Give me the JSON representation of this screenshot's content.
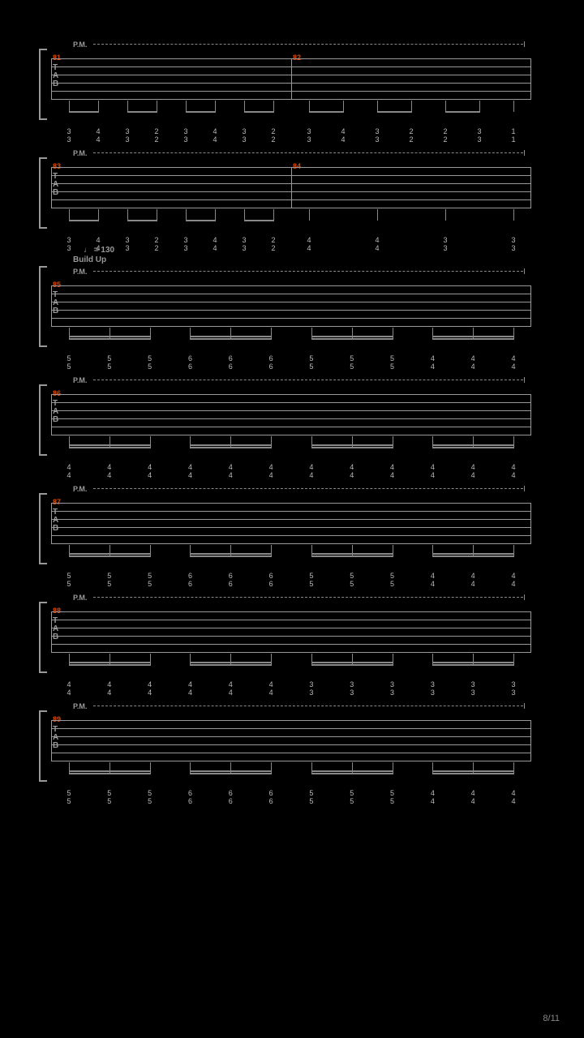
{
  "page_number": "8/11",
  "background_color": "#000000",
  "line_color": "#999999",
  "measure_num_color": "#e04800",
  "note_color": "#bbbbbb",
  "systems": [
    {
      "pm_label": "P.M.",
      "measures": [
        {
          "number": "81",
          "notes": [
            {
              "string5": "3",
              "string6": "3"
            },
            {
              "string5": "4",
              "string6": "4"
            },
            {
              "string5": "3",
              "string6": "3"
            },
            {
              "string5": "2",
              "string6": "2"
            },
            {
              "string5": "3",
              "string6": "3"
            },
            {
              "string5": "4",
              "string6": "4"
            },
            {
              "string5": "3",
              "string6": "3"
            },
            {
              "string5": "2",
              "string6": "2"
            }
          ],
          "beam_groups": [
            [
              0,
              1
            ],
            [
              2,
              3
            ],
            [
              4,
              5
            ],
            [
              6,
              7
            ]
          ]
        },
        {
          "number": "82",
          "notes": [
            {
              "string5": "3",
              "string6": "3"
            },
            {
              "string5": "4",
              "string6": "4"
            },
            {
              "string5": "3",
              "string6": "3"
            },
            {
              "string5": "2",
              "string6": "2"
            },
            {
              "string5": "2",
              "string6": "2"
            },
            {
              "string5": "3",
              "string6": "3"
            },
            {
              "string5": "1",
              "string6": "1"
            }
          ],
          "beam_groups": [
            [
              0,
              1
            ],
            [
              2,
              3
            ],
            [
              4,
              5
            ]
          ]
        }
      ]
    },
    {
      "pm_label": "P.M.",
      "measures": [
        {
          "number": "83",
          "notes": [
            {
              "string5": "3",
              "string6": "3"
            },
            {
              "string5": "4",
              "string6": "4"
            },
            {
              "string5": "3",
              "string6": "3"
            },
            {
              "string5": "2",
              "string6": "2"
            },
            {
              "string5": "3",
              "string6": "3"
            },
            {
              "string5": "4",
              "string6": "4"
            },
            {
              "string5": "3",
              "string6": "3"
            },
            {
              "string5": "2",
              "string6": "2"
            }
          ],
          "beam_groups": [
            [
              0,
              1
            ],
            [
              2,
              3
            ],
            [
              4,
              5
            ],
            [
              6,
              7
            ]
          ]
        },
        {
          "number": "84",
          "notes": [
            {
              "string5": "4",
              "string6": "4"
            },
            {
              "string5": "4",
              "string6": "4"
            },
            {
              "string5": "3",
              "string6": "3"
            },
            {
              "string5": "3",
              "string6": "3"
            }
          ],
          "beam_groups": []
        }
      ]
    },
    {
      "pm_label": "P.M.",
      "tempo": "= 130",
      "section": "Build Up",
      "measures": [
        {
          "number": "85",
          "notes": [
            {
              "string5": "5",
              "string6": "5"
            },
            {
              "string5": "5",
              "string6": "5"
            },
            {
              "string5": "5",
              "string6": "5"
            },
            {
              "string5": "6",
              "string6": "6"
            },
            {
              "string5": "6",
              "string6": "6"
            },
            {
              "string5": "6",
              "string6": "6"
            },
            {
              "string5": "5",
              "string6": "5"
            },
            {
              "string5": "5",
              "string6": "5"
            },
            {
              "string5": "5",
              "string6": "5"
            },
            {
              "string5": "4",
              "string6": "4"
            },
            {
              "string5": "4",
              "string6": "4"
            },
            {
              "string5": "4",
              "string6": "4"
            }
          ],
          "beam_groups": [
            [
              0,
              2
            ],
            [
              3,
              5
            ],
            [
              6,
              8
            ],
            [
              9,
              11
            ]
          ],
          "double_beam": true
        }
      ]
    },
    {
      "pm_label": "P.M.",
      "measures": [
        {
          "number": "86",
          "notes": [
            {
              "string5": "4",
              "string6": "4"
            },
            {
              "string5": "4",
              "string6": "4"
            },
            {
              "string5": "4",
              "string6": "4"
            },
            {
              "string5": "4",
              "string6": "4"
            },
            {
              "string5": "4",
              "string6": "4"
            },
            {
              "string5": "4",
              "string6": "4"
            },
            {
              "string5": "4",
              "string6": "4"
            },
            {
              "string5": "4",
              "string6": "4"
            },
            {
              "string5": "4",
              "string6": "4"
            },
            {
              "string5": "4",
              "string6": "4"
            },
            {
              "string5": "4",
              "string6": "4"
            },
            {
              "string5": "4",
              "string6": "4"
            }
          ],
          "beam_groups": [
            [
              0,
              2
            ],
            [
              3,
              5
            ],
            [
              6,
              8
            ],
            [
              9,
              11
            ]
          ],
          "double_beam": true
        }
      ]
    },
    {
      "pm_label": "P.M.",
      "measures": [
        {
          "number": "87",
          "notes": [
            {
              "string5": "5",
              "string6": "5"
            },
            {
              "string5": "5",
              "string6": "5"
            },
            {
              "string5": "5",
              "string6": "5"
            },
            {
              "string5": "6",
              "string6": "6"
            },
            {
              "string5": "6",
              "string6": "6"
            },
            {
              "string5": "6",
              "string6": "6"
            },
            {
              "string5": "5",
              "string6": "5"
            },
            {
              "string5": "5",
              "string6": "5"
            },
            {
              "string5": "5",
              "string6": "5"
            },
            {
              "string5": "4",
              "string6": "4"
            },
            {
              "string5": "4",
              "string6": "4"
            },
            {
              "string5": "4",
              "string6": "4"
            }
          ],
          "beam_groups": [
            [
              0,
              2
            ],
            [
              3,
              5
            ],
            [
              6,
              8
            ],
            [
              9,
              11
            ]
          ],
          "double_beam": true
        }
      ]
    },
    {
      "pm_label": "P.M.",
      "measures": [
        {
          "number": "88",
          "notes": [
            {
              "string5": "4",
              "string6": "4"
            },
            {
              "string5": "4",
              "string6": "4"
            },
            {
              "string5": "4",
              "string6": "4"
            },
            {
              "string5": "4",
              "string6": "4"
            },
            {
              "string5": "4",
              "string6": "4"
            },
            {
              "string5": "4",
              "string6": "4"
            },
            {
              "string5": "3",
              "string6": "3"
            },
            {
              "string5": "3",
              "string6": "3"
            },
            {
              "string5": "3",
              "string6": "3"
            },
            {
              "string5": "3",
              "string6": "3"
            },
            {
              "string5": "3",
              "string6": "3"
            },
            {
              "string5": "3",
              "string6": "3"
            }
          ],
          "beam_groups": [
            [
              0,
              2
            ],
            [
              3,
              5
            ],
            [
              6,
              8
            ],
            [
              9,
              11
            ]
          ],
          "double_beam": true
        }
      ]
    },
    {
      "pm_label": "P.M.",
      "measures": [
        {
          "number": "89",
          "notes": [
            {
              "string5": "5",
              "string6": "5"
            },
            {
              "string5": "5",
              "string6": "5"
            },
            {
              "string5": "5",
              "string6": "5"
            },
            {
              "string5": "6",
              "string6": "6"
            },
            {
              "string5": "6",
              "string6": "6"
            },
            {
              "string5": "6",
              "string6": "6"
            },
            {
              "string5": "5",
              "string6": "5"
            },
            {
              "string5": "5",
              "string6": "5"
            },
            {
              "string5": "5",
              "string6": "5"
            },
            {
              "string5": "4",
              "string6": "4"
            },
            {
              "string5": "4",
              "string6": "4"
            },
            {
              "string5": "4",
              "string6": "4"
            }
          ],
          "beam_groups": [
            [
              0,
              2
            ],
            [
              3,
              5
            ],
            [
              6,
              8
            ],
            [
              9,
              11
            ]
          ],
          "double_beam": true
        }
      ]
    }
  ]
}
